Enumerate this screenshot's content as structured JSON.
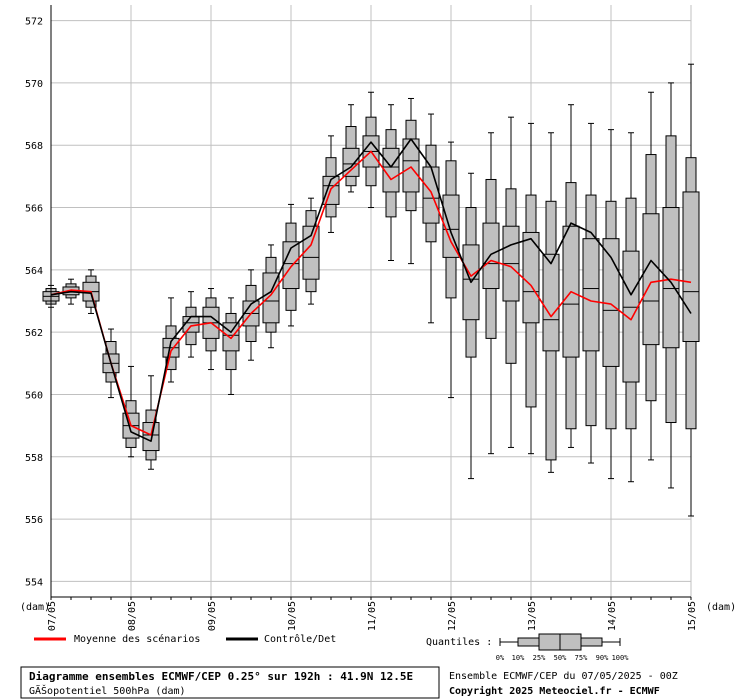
{
  "chart_data": {
    "type": "boxplot",
    "y_axis": {
      "min": 553.5,
      "max": 572.5,
      "tick_labels": [
        "554",
        "556",
        "558",
        "560",
        "562",
        "564",
        "566",
        "568",
        "570",
        "572"
      ],
      "unit_left": "(dam)",
      "unit_right": "(dam)",
      "grid": true
    },
    "x_axis": {
      "start_hours": 0,
      "end_hours": 192,
      "step_hours": 3,
      "date_labels": [
        "07/05",
        "08/05",
        "09/05",
        "10/05",
        "11/05",
        "12/05",
        "13/05",
        "14/05",
        "15/05"
      ],
      "date_label_hours": [
        0,
        24,
        48,
        72,
        96,
        120,
        144,
        168,
        192
      ]
    },
    "boxes": [
      {
        "t": 0,
        "min": 562.8,
        "p10": 562.9,
        "p25": 563.0,
        "p50": 563.15,
        "p75": 563.3,
        "p90": 563.4,
        "max": 563.5
      },
      {
        "t": 6,
        "min": 562.9,
        "p10": 563.1,
        "p25": 563.2,
        "p50": 563.3,
        "p75": 563.45,
        "p90": 563.55,
        "max": 563.7
      },
      {
        "t": 12,
        "min": 562.6,
        "p10": 562.8,
        "p25": 563.0,
        "p50": 563.3,
        "p75": 563.6,
        "p90": 563.8,
        "max": 564.0
      },
      {
        "t": 18,
        "min": 559.9,
        "p10": 560.4,
        "p25": 560.7,
        "p50": 561.0,
        "p75": 561.3,
        "p90": 561.7,
        "max": 562.1
      },
      {
        "t": 24,
        "min": 558.0,
        "p10": 558.3,
        "p25": 558.6,
        "p50": 559.0,
        "p75": 559.4,
        "p90": 559.8,
        "max": 560.9
      },
      {
        "t": 30,
        "min": 557.6,
        "p10": 557.9,
        "p25": 558.2,
        "p50": 558.7,
        "p75": 559.1,
        "p90": 559.5,
        "max": 560.6
      },
      {
        "t": 36,
        "min": 560.4,
        "p10": 560.8,
        "p25": 561.2,
        "p50": 561.5,
        "p75": 561.8,
        "p90": 562.2,
        "max": 563.1
      },
      {
        "t": 42,
        "min": 561.2,
        "p10": 561.6,
        "p25": 562.0,
        "p50": 562.3,
        "p75": 562.5,
        "p90": 562.8,
        "max": 563.3
      },
      {
        "t": 48,
        "min": 560.8,
        "p10": 561.4,
        "p25": 561.8,
        "p50": 562.3,
        "p75": 562.8,
        "p90": 563.1,
        "max": 563.4
      },
      {
        "t": 54,
        "min": 560.0,
        "p10": 560.8,
        "p25": 561.4,
        "p50": 561.9,
        "p75": 562.3,
        "p90": 562.6,
        "max": 563.1
      },
      {
        "t": 60,
        "min": 561.1,
        "p10": 561.7,
        "p25": 562.2,
        "p50": 562.6,
        "p75": 563.0,
        "p90": 563.5,
        "max": 564.0
      },
      {
        "t": 66,
        "min": 561.5,
        "p10": 562.0,
        "p25": 562.3,
        "p50": 563.0,
        "p75": 563.9,
        "p90": 564.4,
        "max": 564.8
      },
      {
        "t": 72,
        "min": 562.2,
        "p10": 562.7,
        "p25": 563.4,
        "p50": 564.2,
        "p75": 564.9,
        "p90": 565.5,
        "max": 566.1
      },
      {
        "t": 78,
        "min": 562.9,
        "p10": 563.3,
        "p25": 563.7,
        "p50": 564.4,
        "p75": 565.4,
        "p90": 565.9,
        "max": 566.3
      },
      {
        "t": 84,
        "min": 565.2,
        "p10": 565.7,
        "p25": 566.1,
        "p50": 566.7,
        "p75": 567.0,
        "p90": 567.6,
        "max": 568.3
      },
      {
        "t": 90,
        "min": 566.5,
        "p10": 566.7,
        "p25": 567.0,
        "p50": 567.4,
        "p75": 567.9,
        "p90": 568.6,
        "max": 569.3
      },
      {
        "t": 96,
        "min": 566.0,
        "p10": 566.7,
        "p25": 567.3,
        "p50": 567.8,
        "p75": 568.3,
        "p90": 568.9,
        "max": 569.7
      },
      {
        "t": 102,
        "min": 564.3,
        "p10": 565.7,
        "p25": 566.5,
        "p50": 567.3,
        "p75": 567.9,
        "p90": 568.5,
        "max": 569.3
      },
      {
        "t": 108,
        "min": 564.2,
        "p10": 565.9,
        "p25": 566.5,
        "p50": 567.5,
        "p75": 568.2,
        "p90": 568.8,
        "max": 569.5
      },
      {
        "t": 114,
        "min": 562.3,
        "p10": 564.9,
        "p25": 565.5,
        "p50": 566.3,
        "p75": 567.3,
        "p90": 568.0,
        "max": 569.0
      },
      {
        "t": 120,
        "min": 559.9,
        "p10": 563.1,
        "p25": 564.4,
        "p50": 565.3,
        "p75": 566.4,
        "p90": 567.5,
        "max": 568.1
      },
      {
        "t": 126,
        "min": 557.3,
        "p10": 561.2,
        "p25": 562.4,
        "p50": 563.7,
        "p75": 564.8,
        "p90": 566.0,
        "max": 567.1
      },
      {
        "t": 132,
        "min": 558.1,
        "p10": 561.8,
        "p25": 563.4,
        "p50": 564.2,
        "p75": 565.5,
        "p90": 566.9,
        "max": 568.4
      },
      {
        "t": 138,
        "min": 558.3,
        "p10": 561.0,
        "p25": 563.0,
        "p50": 564.2,
        "p75": 565.4,
        "p90": 566.6,
        "max": 568.9
      },
      {
        "t": 144,
        "min": 558.1,
        "p10": 559.6,
        "p25": 562.3,
        "p50": 563.3,
        "p75": 565.2,
        "p90": 566.4,
        "max": 568.7
      },
      {
        "t": 150,
        "min": 557.5,
        "p10": 557.9,
        "p25": 561.4,
        "p50": 562.4,
        "p75": 564.5,
        "p90": 566.2,
        "max": 568.4
      },
      {
        "t": 156,
        "min": 558.3,
        "p10": 558.9,
        "p25": 561.2,
        "p50": 562.9,
        "p75": 565.4,
        "p90": 566.8,
        "max": 569.3
      },
      {
        "t": 162,
        "min": 557.8,
        "p10": 559.0,
        "p25": 561.4,
        "p50": 563.4,
        "p75": 565.0,
        "p90": 566.4,
        "max": 568.7
      },
      {
        "t": 168,
        "min": 557.3,
        "p10": 558.9,
        "p25": 560.9,
        "p50": 562.7,
        "p75": 565.0,
        "p90": 566.2,
        "max": 568.5
      },
      {
        "t": 174,
        "min": 557.2,
        "p10": 558.9,
        "p25": 560.4,
        "p50": 562.8,
        "p75": 564.6,
        "p90": 566.3,
        "max": 568.4
      },
      {
        "t": 180,
        "min": 557.9,
        "p10": 559.8,
        "p25": 561.6,
        "p50": 563.0,
        "p75": 565.8,
        "p90": 567.7,
        "max": 569.7
      },
      {
        "t": 186,
        "min": 557.0,
        "p10": 559.1,
        "p25": 561.5,
        "p50": 563.4,
        "p75": 566.0,
        "p90": 568.3,
        "max": 570.0
      },
      {
        "t": 192,
        "min": 556.1,
        "p10": 558.9,
        "p25": 561.7,
        "p50": 563.3,
        "p75": 566.5,
        "p90": 567.6,
        "max": 570.6
      }
    ],
    "series": [
      {
        "name": "Moyenne des scénarios",
        "color": "#ff0000",
        "points": [
          [
            0,
            563.2
          ],
          [
            6,
            563.35
          ],
          [
            12,
            563.3
          ],
          [
            18,
            561.0
          ],
          [
            24,
            559.0
          ],
          [
            30,
            558.7
          ],
          [
            36,
            561.4
          ],
          [
            42,
            562.2
          ],
          [
            48,
            562.3
          ],
          [
            54,
            561.8
          ],
          [
            60,
            562.6
          ],
          [
            66,
            563.2
          ],
          [
            72,
            564.1
          ],
          [
            78,
            564.8
          ],
          [
            84,
            566.6
          ],
          [
            90,
            567.2
          ],
          [
            96,
            567.8
          ],
          [
            102,
            566.9
          ],
          [
            108,
            567.3
          ],
          [
            114,
            566.5
          ],
          [
            120,
            564.9
          ],
          [
            126,
            563.8
          ],
          [
            132,
            564.3
          ],
          [
            138,
            564.1
          ],
          [
            144,
            563.5
          ],
          [
            150,
            562.5
          ],
          [
            156,
            563.3
          ],
          [
            162,
            563.0
          ],
          [
            168,
            562.9
          ],
          [
            174,
            562.4
          ],
          [
            180,
            563.6
          ],
          [
            186,
            563.7
          ],
          [
            192,
            563.6
          ]
        ]
      },
      {
        "name": "Contrôle/Det",
        "color": "#000000",
        "points": [
          [
            0,
            563.2
          ],
          [
            6,
            563.3
          ],
          [
            12,
            563.25
          ],
          [
            18,
            561.0
          ],
          [
            24,
            558.8
          ],
          [
            30,
            558.5
          ],
          [
            36,
            561.7
          ],
          [
            42,
            562.5
          ],
          [
            48,
            562.5
          ],
          [
            54,
            562.0
          ],
          [
            60,
            562.9
          ],
          [
            66,
            563.3
          ],
          [
            72,
            564.7
          ],
          [
            78,
            565.1
          ],
          [
            84,
            566.9
          ],
          [
            90,
            567.3
          ],
          [
            96,
            568.1
          ],
          [
            102,
            567.3
          ],
          [
            108,
            568.2
          ],
          [
            114,
            567.3
          ],
          [
            120,
            565.2
          ],
          [
            126,
            563.6
          ],
          [
            132,
            564.5
          ],
          [
            138,
            564.8
          ],
          [
            144,
            565.0
          ],
          [
            150,
            564.2
          ],
          [
            156,
            565.5
          ],
          [
            162,
            565.2
          ],
          [
            168,
            564.4
          ],
          [
            174,
            563.2
          ],
          [
            180,
            564.3
          ],
          [
            186,
            563.6
          ],
          [
            192,
            562.6
          ]
        ]
      }
    ],
    "legend": {
      "placement": "bottom-left",
      "mean_label": "Moyenne des scénarios",
      "control_label": "Contrôle/Det"
    },
    "quantiles_key": {
      "label": "Quantiles :",
      "items": [
        "0%",
        "10%",
        "25%",
        "50%",
        "75%",
        "90%",
        "100%"
      ]
    },
    "title_line1": "Diagramme ensembles ECMWF/CEP 0.25° sur 192h : 41.9N 12.5E",
    "title_line2": "GÃŠopotentiel 500hPa (dam)",
    "info_line1": "Ensemble ECMWF/CEP du 07/05/2025 - 00Z",
    "info_line2": "Copyright 2025 Meteociel.fr - ECMWF",
    "colors": {
      "box_fill": "#c0c0c0",
      "box_stroke": "#000000",
      "grid": "#c0c0c0",
      "mean": "#ff0000",
      "control": "#000000"
    }
  }
}
